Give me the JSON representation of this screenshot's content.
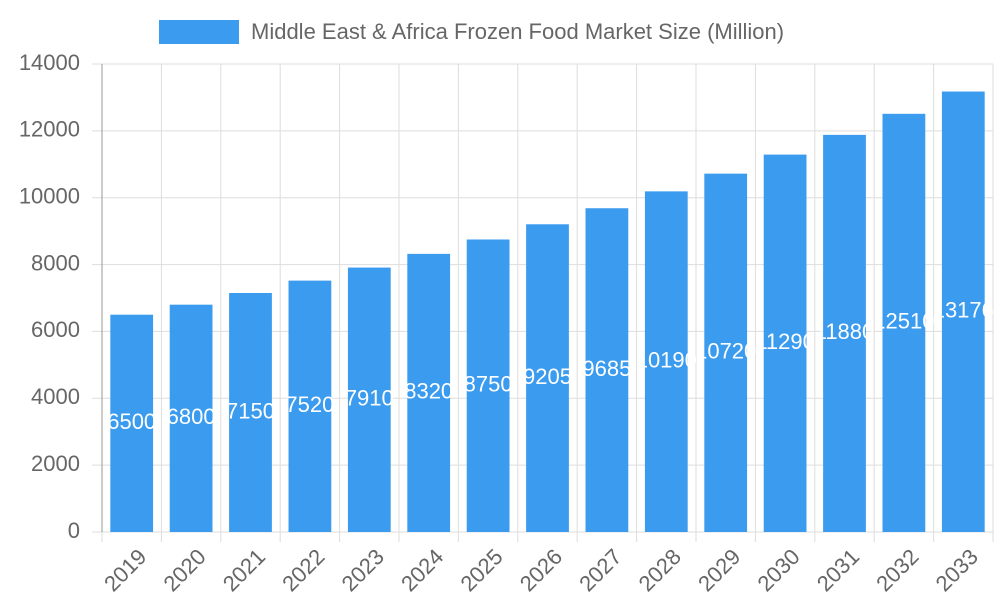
{
  "chart_data": {
    "type": "bar",
    "categories": [
      "2019",
      "2020",
      "2021",
      "2022",
      "2023",
      "2024",
      "2025",
      "2026",
      "2027",
      "2028",
      "2029",
      "2030",
      "2031",
      "2032",
      "2033"
    ],
    "series": [
      {
        "name": "Middle East & Africa Frozen Food Market Size (Million)",
        "color": "#3a9bef",
        "values": [
          6500,
          6800,
          7150,
          7520,
          7910,
          8320,
          8750,
          9205,
          9685,
          10190,
          10720,
          11290,
          11880,
          12510,
          13176
        ]
      }
    ],
    "ylim": [
      0,
      14000
    ],
    "yticks": [
      0,
      2000,
      4000,
      6000,
      8000,
      10000,
      12000,
      14000
    ],
    "grid": true,
    "legend": "top"
  }
}
